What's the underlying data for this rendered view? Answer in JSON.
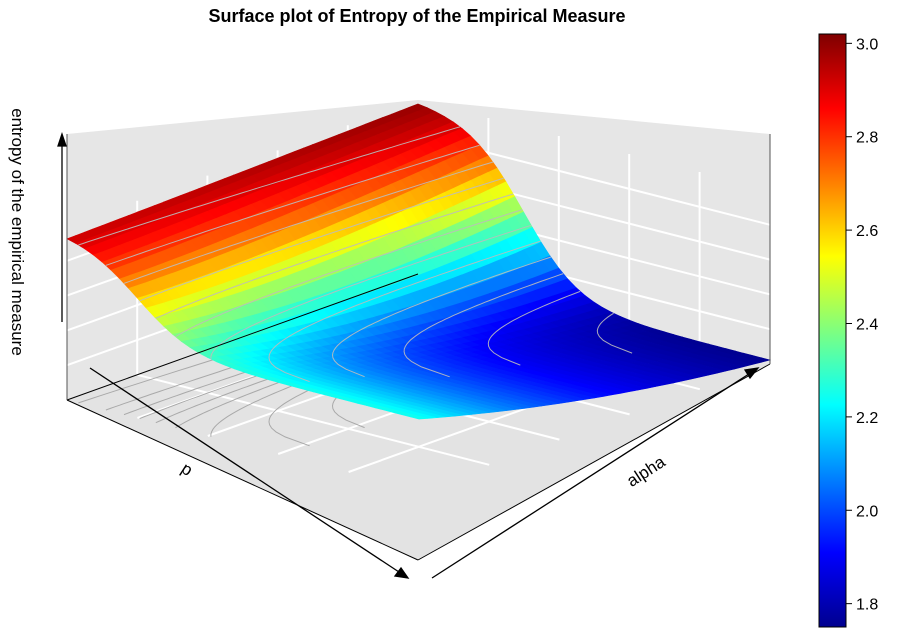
{
  "chart_data": {
    "type": "surface3d",
    "title": "Surface plot of Entropy of the Empirical Measure",
    "xlabel": "p",
    "ylabel": "alpha",
    "zlabel": "entropy of the empirical measure",
    "grid": true,
    "contours": true,
    "colorbar": {
      "position": "right",
      "palette": "jet",
      "range": [
        1.75,
        3.02
      ],
      "ticks": [
        "1.8",
        "2.0",
        "2.2",
        "2.4",
        "2.6",
        "2.8",
        "3.0"
      ],
      "colors": [
        "#00008f",
        "#0000ff",
        "#007fff",
        "#00ffff",
        "#7fff7f",
        "#ffff00",
        "#ff7f00",
        "#ff0000",
        "#7f0000"
      ]
    },
    "z_range": [
      1.75,
      3.02
    ],
    "surface_description": "High entropy (~3.0) near alpha minimum; entropy falls with increasing alpha to ~1.75, decreasing faster for larger p"
  }
}
